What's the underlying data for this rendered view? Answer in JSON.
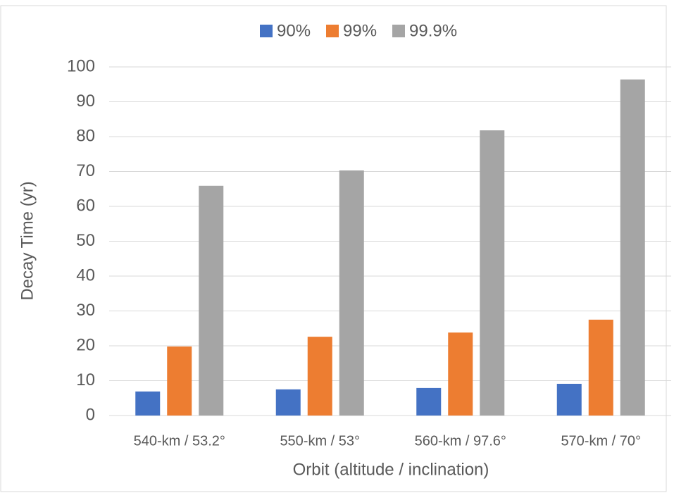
{
  "chart_data": {
    "type": "bar",
    "categories": [
      "540-km / 53.2°",
      "550-km / 53°",
      "560-km / 97.6°",
      "570-km / 70°"
    ],
    "series": [
      {
        "name": "90%",
        "color": "#4472c4",
        "values": [
          6.9,
          7.5,
          7.9,
          9.1
        ]
      },
      {
        "name": "99%",
        "color": "#ed7d31",
        "values": [
          19.8,
          22.6,
          23.8,
          27.5
        ]
      },
      {
        "name": "99.9%",
        "color": "#a5a5a5",
        "values": [
          65.9,
          70.3,
          81.8,
          96.4
        ]
      }
    ],
    "x_label": "Orbit (altitude / inclination)",
    "y_label": "Decay Time (yr)",
    "ylim": [
      0,
      100
    ],
    "yticks": [
      0,
      10,
      20,
      30,
      40,
      50,
      60,
      70,
      80,
      90,
      100
    ],
    "grid": true,
    "legend": "top"
  }
}
